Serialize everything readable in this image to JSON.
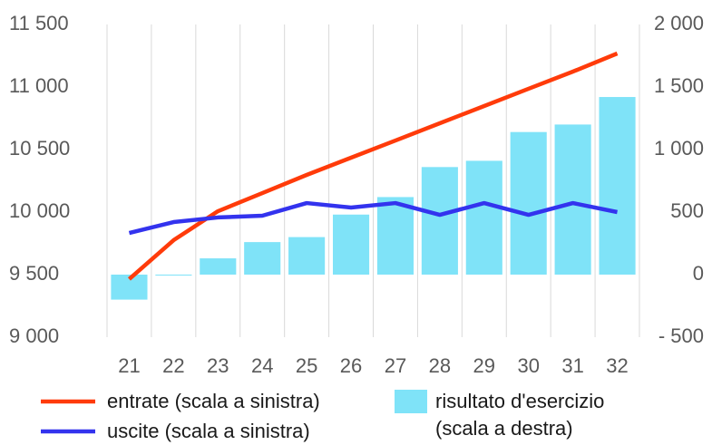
{
  "chart_data": {
    "type": "combo",
    "categories": [
      "21",
      "22",
      "23",
      "24",
      "25",
      "26",
      "27",
      "28",
      "29",
      "30",
      "31",
      "32"
    ],
    "series": [
      {
        "name": "risultato d'esercizio (scala a destra)",
        "type": "bar",
        "axis": "y2",
        "color": "#7fe3f8",
        "values": [
          -200,
          -5,
          130,
          260,
          300,
          480,
          620,
          860,
          910,
          1140,
          1200,
          1420
        ]
      },
      {
        "name": "entrate (scala a sinistra)",
        "type": "line",
        "axis": "y",
        "color": "#ff3b0a",
        "values": [
          9464,
          9775,
          10007,
          10152,
          10297,
          10435,
          10572,
          10710,
          10848,
          10986,
          11123,
          11268
        ]
      },
      {
        "name": "uscite (scala a sinistra)",
        "type": "line",
        "axis": "y",
        "color": "#3333ee",
        "values": [
          9833,
          9920,
          9957,
          9971,
          10072,
          10036,
          10072,
          9978,
          10072,
          9978,
          10072,
          10000
        ]
      }
    ],
    "ylim": [
      9000,
      11500
    ],
    "yticks": [
      {
        "value": 9000,
        "label": "9 000"
      },
      {
        "value": 9500,
        "label": "9 500"
      },
      {
        "value": 10000,
        "label": "10 000"
      },
      {
        "value": 10500,
        "label": "10 500"
      },
      {
        "value": 11000,
        "label": "11 000"
      },
      {
        "value": 11500,
        "label": "11 500"
      }
    ],
    "y2lim": [
      -500,
      2000
    ],
    "y2ticks": [
      {
        "value": -500,
        "label": "- 500"
      },
      0,
      500,
      {
        "value": 1000,
        "label": "1 000"
      },
      {
        "value": 1500,
        "label": "1 500"
      },
      {
        "value": 2000,
        "label": "2 000"
      }
    ]
  }
}
